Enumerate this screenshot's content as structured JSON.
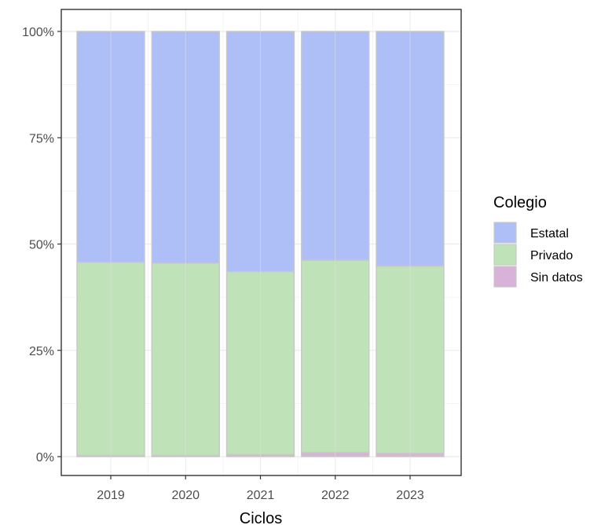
{
  "chart_data": {
    "type": "bar",
    "stacked": true,
    "normalized": true,
    "categories": [
      "2019",
      "2020",
      "2021",
      "2022",
      "2023"
    ],
    "series": [
      {
        "name": "Sin datos",
        "values": [
          0.3,
          0.3,
          0.5,
          1.0,
          0.8
        ],
        "color": "#D9B2DA"
      },
      {
        "name": "Privado",
        "values": [
          45.4,
          45.2,
          43.0,
          45.2,
          44.0
        ],
        "color": "#BFE2B8"
      },
      {
        "name": "Estatal",
        "values": [
          54.3,
          54.5,
          56.5,
          53.8,
          55.2
        ],
        "color": "#AEBFF8"
      }
    ],
    "xlabel": "Ciclos",
    "ylabel": "",
    "ylim": [
      0,
      100
    ],
    "yticks": [
      "0%",
      "25%",
      "50%",
      "75%",
      "100%"
    ],
    "ytick_values": [
      0,
      25,
      50,
      75,
      100
    ],
    "grid": true,
    "legend": {
      "title": "Colegio",
      "position": "right",
      "entries": [
        "Estatal",
        "Privado",
        "Sin datos"
      ]
    },
    "bar_outline_color": "#c8c8c8",
    "panel_border_color": "#333333"
  }
}
